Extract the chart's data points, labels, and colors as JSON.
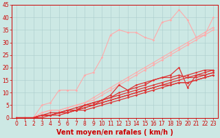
{
  "xlabel": "Vent moyen/en rafales ( km/h )",
  "bg_color": "#cce8e4",
  "grid_color": "#aacccc",
  "xlim": [
    -0.5,
    23.5
  ],
  "ylim": [
    0,
    45
  ],
  "xticks": [
    0,
    1,
    2,
    3,
    4,
    5,
    6,
    7,
    8,
    9,
    10,
    11,
    12,
    13,
    14,
    15,
    16,
    17,
    18,
    19,
    20,
    21,
    22,
    23
  ],
  "yticks": [
    0,
    5,
    10,
    15,
    20,
    25,
    30,
    35,
    40,
    45
  ],
  "series": [
    {
      "color": "#ffaaaa",
      "alpha": 1.0,
      "lw": 0.8,
      "x": [
        0,
        1,
        2,
        3,
        4,
        5,
        6,
        7,
        8,
        9,
        10,
        11,
        12,
        13,
        14,
        15,
        16,
        17,
        18,
        19,
        20,
        21,
        22,
        23
      ],
      "y": [
        0,
        0,
        0,
        5,
        6,
        11,
        11,
        11,
        17,
        18,
        24,
        33,
        35,
        34,
        34,
        32,
        31,
        38,
        39,
        43,
        39,
        32,
        33,
        40
      ]
    },
    {
      "color": "#ffaaaa",
      "alpha": 1.0,
      "lw": 0.8,
      "x": [
        0,
        1,
        2,
        3,
        4,
        5,
        6,
        7,
        8,
        9,
        10,
        11,
        12,
        13,
        14,
        15,
        16,
        17,
        18,
        19,
        20,
        21,
        22,
        23
      ],
      "y": [
        0,
        0,
        0,
        2,
        3,
        3,
        4,
        5,
        6,
        8,
        10,
        12,
        14,
        16,
        18,
        20,
        22,
        24,
        26,
        28,
        30,
        32,
        34,
        36
      ]
    },
    {
      "color": "#ffaaaa",
      "alpha": 1.0,
      "lw": 0.8,
      "x": [
        0,
        1,
        2,
        3,
        4,
        5,
        6,
        7,
        8,
        9,
        10,
        11,
        12,
        13,
        14,
        15,
        16,
        17,
        18,
        19,
        20,
        21,
        22,
        23
      ],
      "y": [
        0,
        0,
        0,
        2,
        3,
        3,
        4,
        5,
        6,
        7,
        9,
        11,
        13,
        15,
        17,
        19,
        21,
        23,
        25,
        27,
        29,
        31,
        33,
        35
      ]
    },
    {
      "color": "#dd3333",
      "alpha": 1.0,
      "lw": 0.9,
      "x": [
        0,
        1,
        2,
        3,
        4,
        5,
        6,
        7,
        8,
        9,
        10,
        11,
        12,
        13,
        14,
        15,
        16,
        17,
        18,
        19,
        20,
        21,
        22,
        23
      ],
      "y": [
        0,
        0,
        0,
        1,
        1,
        2,
        2,
        3,
        5,
        6,
        7,
        9,
        13,
        11,
        12,
        13,
        15,
        16,
        17,
        20,
        12,
        17,
        17,
        18
      ]
    },
    {
      "color": "#dd3333",
      "alpha": 1.0,
      "lw": 0.9,
      "x": [
        0,
        1,
        2,
        3,
        4,
        5,
        6,
        7,
        8,
        9,
        10,
        11,
        12,
        13,
        14,
        15,
        16,
        17,
        18,
        19,
        20,
        21,
        22,
        23
      ],
      "y": [
        0,
        0,
        0,
        1,
        1,
        2,
        3,
        3,
        5,
        5,
        7,
        8,
        10,
        11,
        13,
        14,
        15,
        16,
        16,
        17,
        16,
        17,
        18,
        19
      ]
    },
    {
      "color": "#dd3333",
      "alpha": 1.0,
      "lw": 0.9,
      "x": [
        0,
        1,
        2,
        3,
        4,
        5,
        6,
        7,
        8,
        9,
        10,
        11,
        12,
        13,
        14,
        15,
        16,
        17,
        18,
        19,
        20,
        21,
        22,
        23
      ],
      "y": [
        0,
        0,
        0,
        1,
        2,
        2,
        3,
        4,
        5,
        6,
        7,
        8,
        9,
        10,
        11,
        12,
        13,
        14,
        15,
        16,
        17,
        18,
        19,
        19
      ]
    },
    {
      "color": "#dd3333",
      "alpha": 1.0,
      "lw": 0.9,
      "x": [
        0,
        1,
        2,
        3,
        4,
        5,
        6,
        7,
        8,
        9,
        10,
        11,
        12,
        13,
        14,
        15,
        16,
        17,
        18,
        19,
        20,
        21,
        22,
        23
      ],
      "y": [
        0,
        0,
        0,
        1,
        1,
        2,
        3,
        3,
        4,
        5,
        6,
        7,
        8,
        9,
        10,
        11,
        12,
        13,
        14,
        15,
        16,
        16,
        17,
        18
      ]
    },
    {
      "color": "#dd3333",
      "alpha": 1.0,
      "lw": 0.9,
      "x": [
        0,
        1,
        2,
        3,
        4,
        5,
        6,
        7,
        8,
        9,
        10,
        11,
        12,
        13,
        14,
        15,
        16,
        17,
        18,
        19,
        20,
        21,
        22,
        23
      ],
      "y": [
        0,
        0,
        0,
        1,
        1,
        2,
        2,
        3,
        4,
        5,
        6,
        7,
        8,
        9,
        10,
        11,
        12,
        13,
        13,
        14,
        14,
        15,
        16,
        17
      ]
    },
    {
      "color": "#dd3333",
      "alpha": 1.0,
      "lw": 0.9,
      "x": [
        0,
        1,
        2,
        3,
        4,
        5,
        6,
        7,
        8,
        9,
        10,
        11,
        12,
        13,
        14,
        15,
        16,
        17,
        18,
        19,
        20,
        21,
        22,
        23
      ],
      "y": [
        0,
        0,
        0,
        0,
        1,
        1,
        2,
        3,
        3,
        4,
        5,
        6,
        7,
        8,
        9,
        10,
        11,
        12,
        13,
        14,
        14,
        15,
        16,
        17
      ]
    }
  ],
  "marker": "D",
  "markersize": 1.8,
  "axis_color": "#cc0000",
  "tick_color": "#cc0000",
  "label_color": "#cc0000",
  "label_fontsize": 7,
  "tick_fontsize": 5.5
}
